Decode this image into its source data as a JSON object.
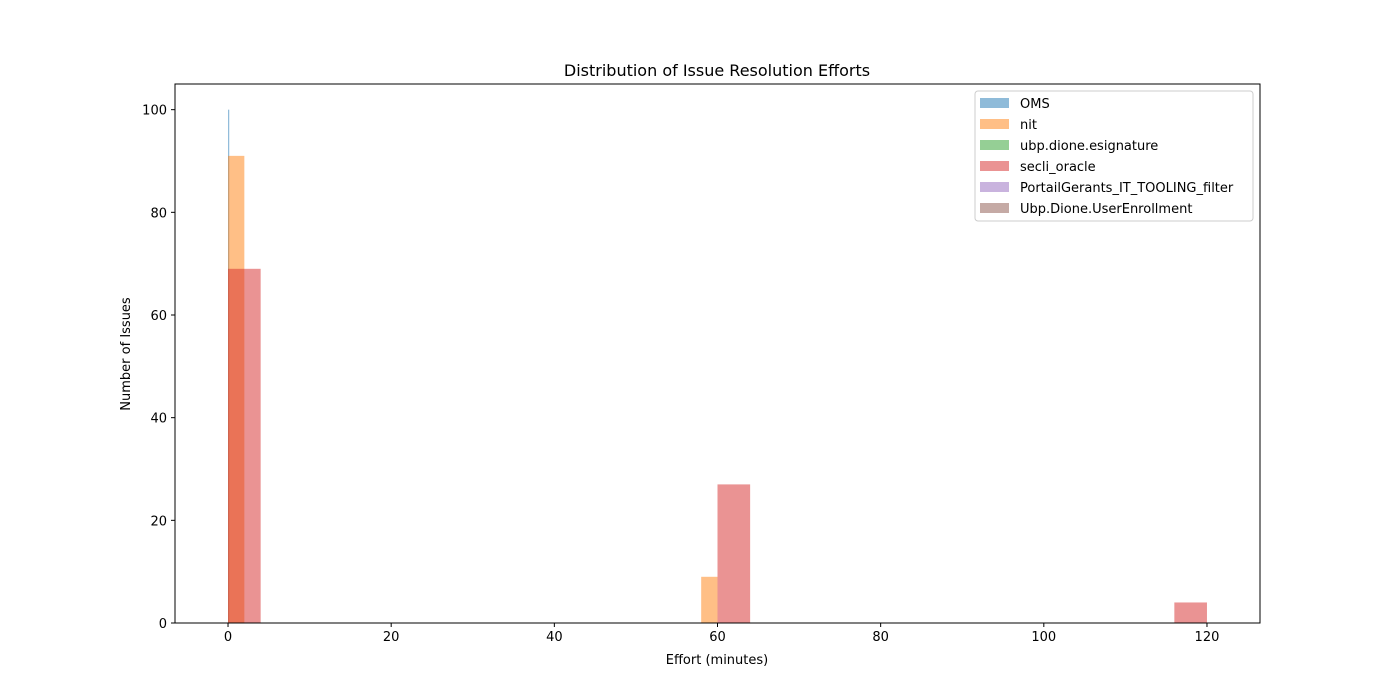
{
  "chart_data": {
    "type": "bar",
    "title": "Distribution of Issue Resolution Efforts",
    "xlabel": "Effort (minutes)",
    "ylabel": "Number of Issues",
    "xlim": [
      -6.5,
      126.5
    ],
    "ylim": [
      0,
      105
    ],
    "xticks": [
      0,
      20,
      40,
      60,
      80,
      100,
      120
    ],
    "yticks": [
      0,
      20,
      40,
      60,
      80,
      100
    ],
    "grid": false,
    "legend_position": "top-right",
    "series": [
      {
        "name": "OMS",
        "color": "#1f77b4",
        "opacity": 0.5,
        "bins": [
          {
            "x0": 0,
            "x1": 0.15,
            "value": 100
          }
        ]
      },
      {
        "name": "nit",
        "color": "#ff7f0e",
        "opacity": 0.5,
        "bins": [
          {
            "x0": 0,
            "x1": 2,
            "value": 91
          },
          {
            "x0": 58,
            "x1": 60,
            "value": 9
          }
        ]
      },
      {
        "name": "ubp.dione.esignature",
        "color": "#2ca02c",
        "opacity": 0.5,
        "bins": []
      },
      {
        "name": "secli_oracle",
        "color": "#d62728",
        "opacity": 0.5,
        "bins": [
          {
            "x0": 0,
            "x1": 4,
            "value": 69
          },
          {
            "x0": 60,
            "x1": 64,
            "value": 27
          },
          {
            "x0": 116,
            "x1": 120,
            "value": 4
          }
        ]
      },
      {
        "name": "PortailGerants_IT_TOOLING_filter",
        "color": "#9467bd",
        "opacity": 0.5,
        "bins": []
      },
      {
        "name": "Ubp.Dione.UserEnrollment",
        "color": "#8c564b",
        "opacity": 0.5,
        "bins": []
      }
    ]
  }
}
